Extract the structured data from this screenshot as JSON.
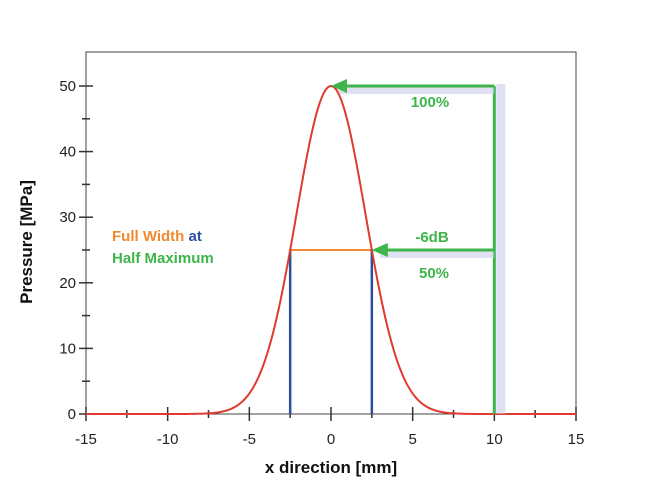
{
  "chart_data": {
    "type": "line",
    "title": "",
    "xlabel": "x direction [mm]",
    "ylabel": "Pressure [MPa]",
    "xlim": [
      -15,
      15
    ],
    "ylim": [
      0,
      52
    ],
    "xticks": [
      -15,
      -10,
      -5,
      0,
      5,
      10,
      15
    ],
    "yticks": [
      0,
      10,
      20,
      30,
      40,
      50
    ],
    "grid": false,
    "series": [
      {
        "name": "",
        "type": "gaussian",
        "peak": 50,
        "center": 0,
        "fwhm": 5,
        "color": "#e03a2e"
      }
    ],
    "fwhm_line": {
      "y": 25,
      "x_left": -2.5,
      "x_right": 2.5,
      "color": "#f08a2c"
    },
    "fwhm_verticals": {
      "x": [
        -2.5,
        2.5
      ],
      "color": "#2e4f9e"
    },
    "arrows": [
      {
        "label": "100%",
        "from_x": 10,
        "to_x": 0,
        "y": 50,
        "color": "#3db54a"
      },
      {
        "label": "50%",
        "label_above": "-6dB",
        "from_x": 10,
        "to_x": 2.5,
        "y": 25,
        "color": "#3db54a"
      }
    ],
    "legend_text": {
      "line1_a": "Full Width",
      "line1_b": "at",
      "line2": "Half Maximum"
    },
    "colors": {
      "orange": "#f08a2c",
      "blue": "#2e4f9e",
      "green": "#3db54a",
      "curve": "#e03a2e",
      "axis": "#333333"
    }
  }
}
